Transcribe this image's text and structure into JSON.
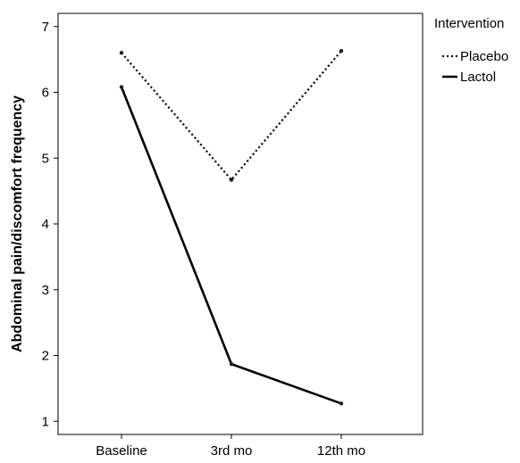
{
  "chart_data": {
    "type": "line",
    "categories": [
      "Baseline",
      "3rd mo",
      "12th mo"
    ],
    "series": [
      {
        "name": "Placebo",
        "values": [
          6.6,
          4.67,
          6.63
        ],
        "line_style": "dotted",
        "color": "#000000"
      },
      {
        "name": "Lactol",
        "values": [
          6.08,
          1.87,
          1.27
        ],
        "line_style": "solid",
        "color": "#000000"
      }
    ],
    "ylabel": "Abdominal pain/discomfort frequency",
    "xlabel": "",
    "ylim": [
      0.8,
      7.2
    ],
    "yticks": [
      1,
      2,
      3,
      4,
      5,
      6,
      7
    ],
    "legend": {
      "title": "Intervention",
      "placement": "top-right, outside plot"
    },
    "grid": false
  }
}
